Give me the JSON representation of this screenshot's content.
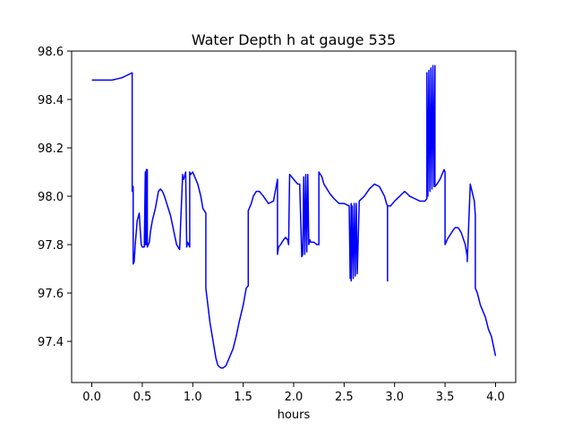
{
  "chart_data": {
    "type": "line",
    "title": "Water Depth h at gauge 535",
    "xlabel": "hours",
    "ylabel": "",
    "xlim": [
      -0.2,
      4.2
    ],
    "ylim": [
      97.23,
      98.6
    ],
    "xticks": [
      0.0,
      0.5,
      1.0,
      1.5,
      2.0,
      2.5,
      3.0,
      3.5,
      4.0
    ],
    "xtick_labels": [
      "0.0",
      "0.5",
      "1.0",
      "1.5",
      "2.0",
      "2.5",
      "3.0",
      "3.5",
      "4.0"
    ],
    "yticks": [
      97.4,
      97.6,
      97.8,
      98.0,
      98.2,
      98.4,
      98.6
    ],
    "ytick_labels": [
      "97.4",
      "97.6",
      "97.8",
      "98.0",
      "98.2",
      "98.4",
      "98.6"
    ],
    "grid": false,
    "legend": "none",
    "series": [
      {
        "color": "#0000ff",
        "x": [
          0.0,
          0.2,
          0.25,
          0.3,
          0.35,
          0.4,
          0.4,
          0.41,
          0.41,
          0.41,
          0.42,
          0.43,
          0.45,
          0.47,
          0.48,
          0.49,
          0.5,
          0.51,
          0.52,
          0.53,
          0.53,
          0.54,
          0.54,
          0.55,
          0.55,
          0.56,
          0.57,
          0.58,
          0.6,
          0.63,
          0.66,
          0.68,
          0.7,
          0.72,
          0.75,
          0.78,
          0.81,
          0.84,
          0.87,
          0.9,
          0.9,
          0.91,
          0.93,
          0.94,
          0.94,
          0.95,
          0.96,
          0.97,
          0.97,
          0.98,
          1.0,
          1.02,
          1.05,
          1.08,
          1.1,
          1.13,
          1.13,
          1.15,
          1.17,
          1.19,
          1.21,
          1.23,
          1.25,
          1.28,
          1.3,
          1.33,
          1.36,
          1.4,
          1.43,
          1.46,
          1.5,
          1.53,
          1.55,
          1.55,
          1.58,
          1.6,
          1.63,
          1.66,
          1.7,
          1.75,
          1.8,
          1.84,
          1.84,
          1.85,
          1.87,
          1.9,
          1.92,
          1.94,
          1.95,
          1.96,
          2.0,
          2.02,
          2.04,
          2.06,
          2.08,
          2.09,
          2.1,
          2.11,
          2.12,
          2.13,
          2.14,
          2.15,
          2.16,
          2.17,
          2.2,
          2.23,
          2.25,
          2.25,
          2.28,
          2.3,
          2.33,
          2.36,
          2.4,
          2.45,
          2.5,
          2.55,
          2.56,
          2.57,
          2.57,
          2.58,
          2.59,
          2.6,
          2.61,
          2.62,
          2.63,
          2.65,
          2.7,
          2.75,
          2.8,
          2.85,
          2.9,
          2.92,
          2.93,
          2.93,
          2.93,
          2.94,
          2.96,
          3.0,
          3.05,
          3.1,
          3.15,
          3.2,
          3.25,
          3.3,
          3.32,
          3.32,
          3.33,
          3.34,
          3.35,
          3.36,
          3.37,
          3.38,
          3.39,
          3.4,
          3.4,
          3.42,
          3.45,
          3.48,
          3.49,
          3.5,
          3.5,
          3.52,
          3.55,
          3.58,
          3.6,
          3.63,
          3.66,
          3.7,
          3.72,
          3.72,
          3.75,
          3.79,
          3.8,
          3.8,
          3.82,
          3.85,
          3.88,
          3.9,
          3.93,
          3.96,
          3.98,
          4.0
        ],
        "y": [
          98.48,
          98.48,
          98.485,
          98.49,
          98.5,
          98.51,
          98.02,
          98.04,
          98.03,
          97.72,
          97.73,
          97.8,
          97.9,
          97.93,
          97.86,
          97.8,
          97.79,
          97.79,
          97.79,
          98.1,
          97.8,
          97.8,
          98.11,
          98.11,
          97.79,
          97.8,
          97.81,
          97.85,
          97.9,
          97.95,
          98.02,
          98.03,
          98.02,
          98.0,
          97.96,
          97.92,
          97.86,
          97.8,
          97.78,
          98.09,
          98.08,
          98.07,
          98.1,
          97.8,
          97.79,
          97.81,
          97.8,
          97.79,
          98.1,
          98.09,
          98.1,
          98.08,
          98.05,
          98.0,
          97.95,
          97.93,
          97.62,
          97.55,
          97.48,
          97.43,
          97.38,
          97.33,
          97.3,
          97.29,
          97.29,
          97.3,
          97.33,
          97.37,
          97.42,
          97.48,
          97.55,
          97.62,
          97.63,
          97.94,
          97.97,
          98.0,
          98.02,
          98.02,
          98.0,
          97.97,
          97.98,
          98.07,
          97.76,
          97.79,
          97.8,
          97.82,
          97.83,
          97.82,
          97.8,
          98.09,
          98.07,
          98.06,
          98.05,
          98.05,
          97.75,
          97.76,
          98.08,
          97.76,
          98.09,
          97.77,
          98.09,
          97.8,
          97.82,
          97.81,
          97.81,
          97.8,
          97.8,
          98.1,
          98.08,
          98.05,
          98.03,
          98.01,
          97.99,
          97.97,
          97.97,
          97.96,
          97.66,
          97.97,
          97.65,
          97.96,
          97.66,
          97.97,
          97.67,
          97.97,
          97.68,
          97.98,
          98.0,
          98.03,
          98.05,
          98.04,
          98.0,
          97.97,
          97.96,
          97.65,
          97.96,
          97.96,
          97.96,
          97.98,
          98.0,
          98.02,
          98.0,
          97.99,
          97.98,
          97.98,
          97.99,
          98.51,
          98.0,
          98.52,
          98.02,
          98.53,
          98.03,
          98.54,
          98.04,
          98.54,
          98.04,
          98.05,
          98.07,
          98.1,
          98.11,
          98.1,
          97.8,
          97.82,
          97.84,
          97.86,
          97.87,
          97.87,
          97.85,
          97.8,
          97.75,
          97.73,
          98.05,
          97.98,
          97.92,
          97.62,
          97.6,
          97.55,
          97.52,
          97.5,
          97.45,
          97.42,
          97.38,
          97.34
        ]
      }
    ]
  }
}
